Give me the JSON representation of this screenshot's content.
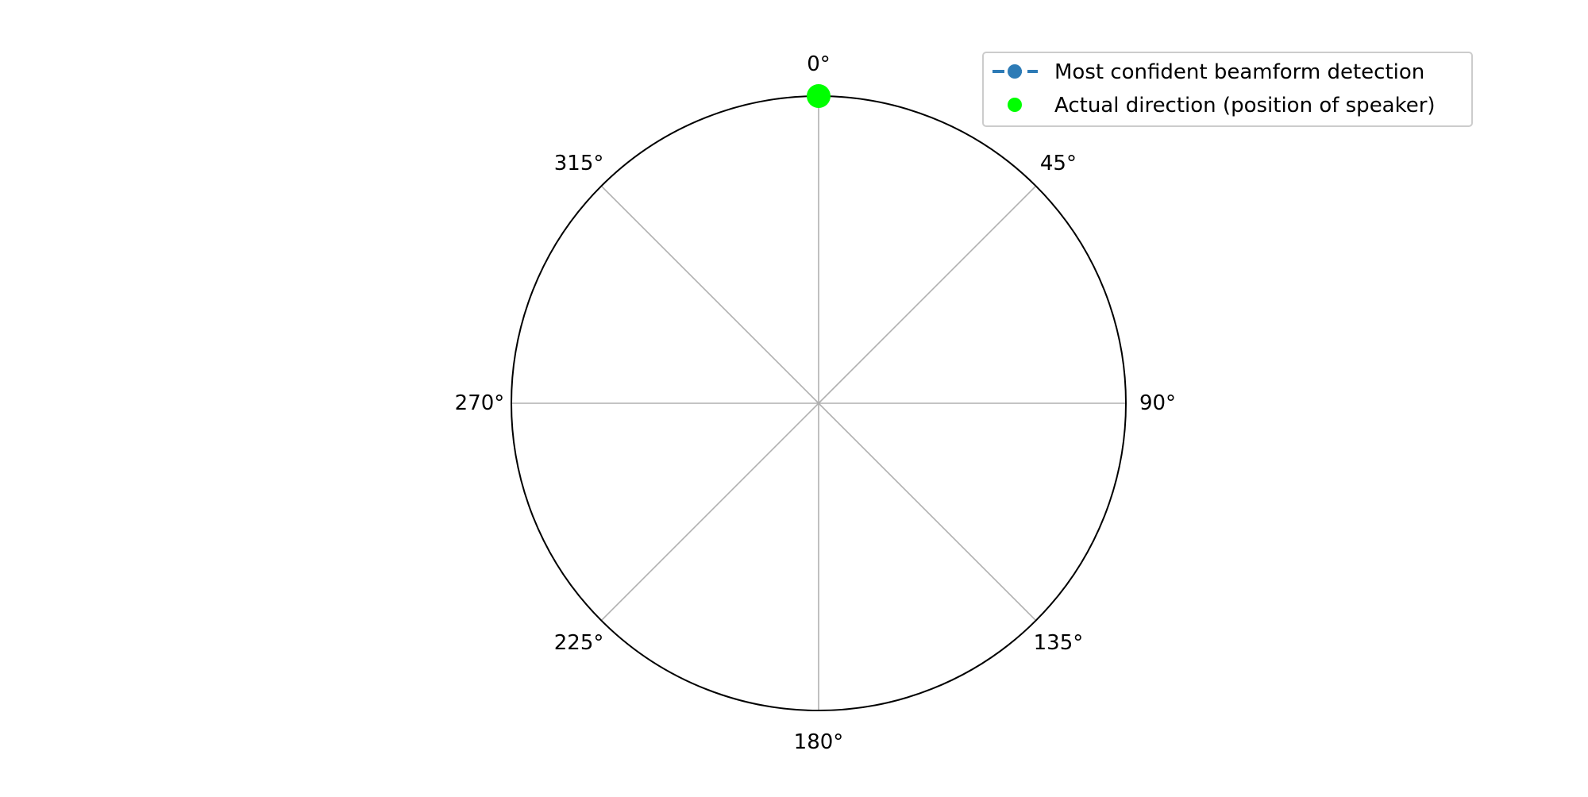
{
  "chart_data": {
    "type": "polar",
    "theta_zero_location": "top",
    "theta_direction": "clockwise",
    "angular_ticks": [
      0,
      45,
      90,
      135,
      180,
      225,
      270,
      315
    ],
    "angular_tick_labels": [
      "0°",
      "45°",
      "90°",
      "135°",
      "180°",
      "225°",
      "270°",
      "315°"
    ],
    "radial_ticks_visible": false,
    "grid": true,
    "series": [
      {
        "name": "Most confident beamform detection",
        "style": "dashed-line-with-circle-markers",
        "color": "#2d7bb6",
        "points": []
      },
      {
        "name": "Actual direction (position of speaker)",
        "style": "marker-only",
        "color": "#00ff00",
        "points": [
          {
            "angle_deg": 0,
            "r": 1.0
          }
        ]
      }
    ],
    "legend_position": "top-right"
  },
  "colors": {
    "grid": "#b0b0b0",
    "frame": "#000000",
    "legend_border": "#cccccc"
  }
}
